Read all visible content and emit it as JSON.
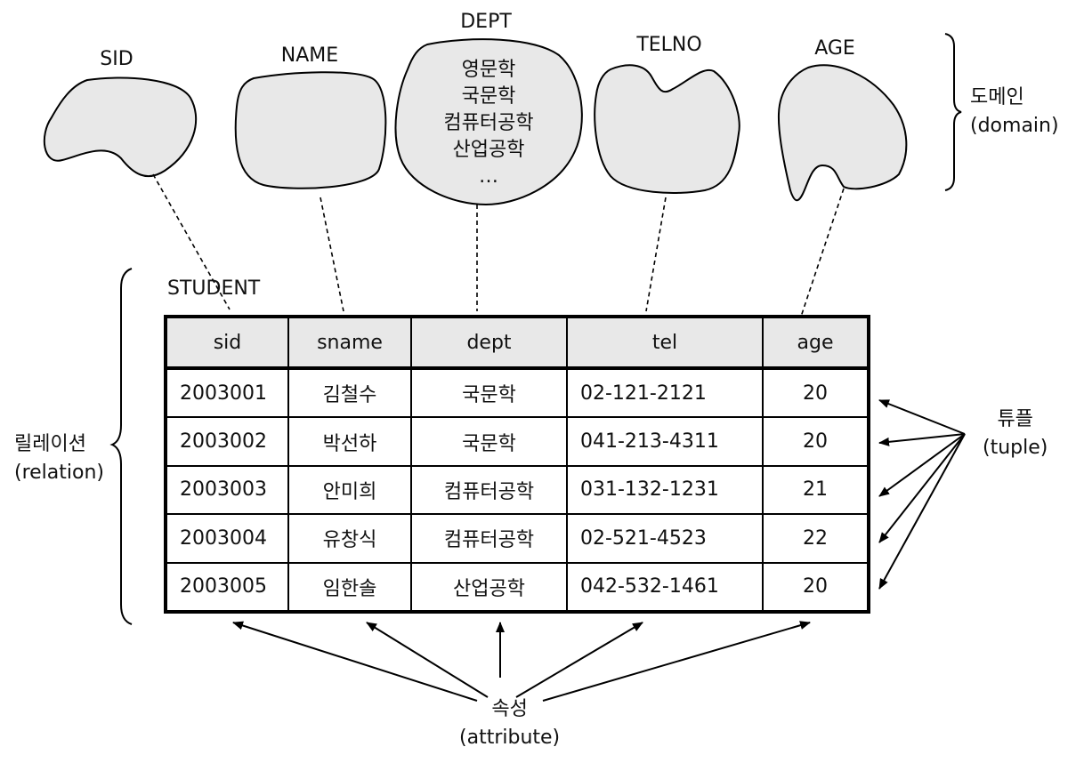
{
  "domains": [
    {
      "name": "SID"
    },
    {
      "name": "NAME"
    },
    {
      "name": "DEPT",
      "values": [
        "영문학",
        "국문학",
        "컴퓨터공학",
        "산업공학",
        "…"
      ]
    },
    {
      "name": "TELNO"
    },
    {
      "name": "AGE"
    }
  ],
  "labels": {
    "domain": [
      "도메인",
      "(domain)"
    ],
    "relation": [
      "릴레이션",
      "(relation)"
    ],
    "tuple": [
      "튜플",
      "(tuple)"
    ],
    "attribute": [
      "속성",
      "(attribute)"
    ]
  },
  "table": {
    "name": "STUDENT",
    "columns": [
      "sid",
      "sname",
      "dept",
      "tel",
      "age"
    ],
    "rows": [
      [
        "2003001",
        "김철수",
        "국문학",
        "02-121-2121",
        "20"
      ],
      [
        "2003002",
        "박선하",
        "국문학",
        "041-213-4311",
        "20"
      ],
      [
        "2003003",
        "안미희",
        "컴퓨터공학",
        "031-132-1231",
        "21"
      ],
      [
        "2003004",
        "유창식",
        "컴퓨터공학",
        "02-521-4523",
        "22"
      ],
      [
        "2003005",
        "임한솔",
        "산업공학",
        "042-532-1461",
        "20"
      ]
    ]
  },
  "colors": {
    "blob_fill": "#e8e8e8",
    "header_fill": "#e8e8e8",
    "line": "#000000"
  }
}
